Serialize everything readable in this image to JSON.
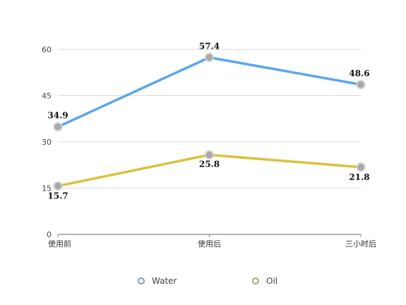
{
  "chart_data": {
    "type": "line",
    "categories": [
      "使用前",
      "使用后",
      "三小时后"
    ],
    "series": [
      {
        "name": "Water",
        "values": [
          34.9,
          57.4,
          48.6
        ],
        "color": "#5aa7ea"
      },
      {
        "name": "Oil",
        "values": [
          15.7,
          25.8,
          21.8
        ],
        "color": "#d9c23a"
      }
    ],
    "data_labels": [
      [
        "34.9",
        "57.4",
        "48.6"
      ],
      [
        "15.7",
        "25.8",
        "21.8"
      ]
    ],
    "yticks": [
      "0",
      "15",
      "30",
      "45",
      "60"
    ],
    "ylim": [
      0,
      60
    ],
    "grid": true,
    "legend_position": "bottom",
    "title": "",
    "xlabel": "",
    "ylabel": ""
  }
}
